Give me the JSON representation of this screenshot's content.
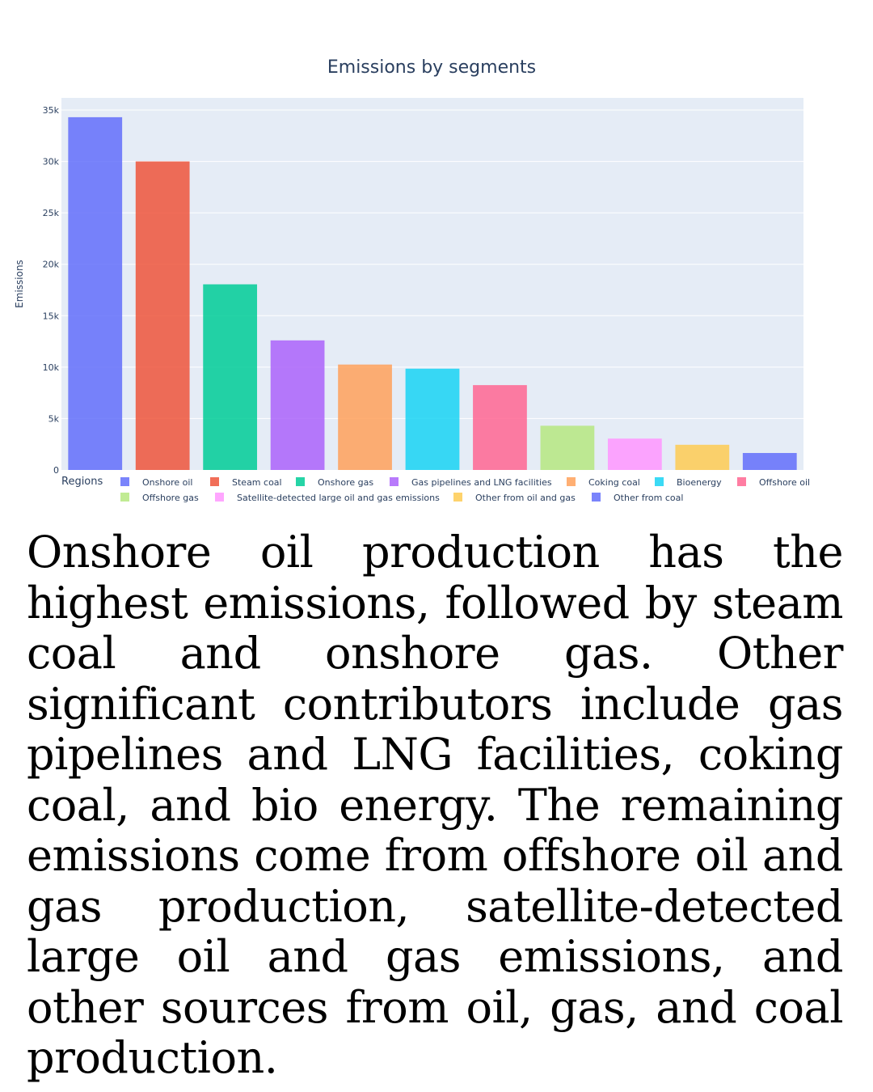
{
  "chart_data": {
    "type": "bar",
    "title": "Emissions by segments",
    "xlabel": "",
    "ylabel": "Emissions",
    "ylim": [
      0,
      35000
    ],
    "yticks": [
      0,
      5000,
      10000,
      15000,
      20000,
      25000,
      30000,
      35000
    ],
    "ytick_labels": [
      "0",
      "5k",
      "10k",
      "15k",
      "20k",
      "25k",
      "30k",
      "35k"
    ],
    "grid": true,
    "legend_title": "Regions",
    "legend_position": "bottom",
    "plot_background": "#e5ecf6",
    "series": [
      {
        "name": "Onshore oil",
        "value": 34300,
        "color": "#636efa"
      },
      {
        "name": "Steam coal",
        "value": 30000,
        "color": "#ef553b"
      },
      {
        "name": "Onshore gas",
        "value": 18050,
        "color": "#00cc96"
      },
      {
        "name": "Gas pipelines and LNG facilities",
        "value": 12600,
        "color": "#ab63fa"
      },
      {
        "name": "Coking coal",
        "value": 10250,
        "color": "#ffa15a"
      },
      {
        "name": "Bioenergy",
        "value": 9850,
        "color": "#19d3f3"
      },
      {
        "name": "Offshore oil",
        "value": 8250,
        "color": "#ff6692"
      },
      {
        "name": "Offshore gas",
        "value": 4300,
        "color": "#b6e880"
      },
      {
        "name": "Satellite-detected large oil and gas emissions",
        "value": 3050,
        "color": "#ff97ff"
      },
      {
        "name": "Other from oil and gas",
        "value": 2450,
        "color": "#fecb52"
      },
      {
        "name": "Other from coal",
        "value": 1650,
        "color": "#636efa"
      }
    ]
  },
  "caption": "Onshore oil production has the highest emissions, followed by steam coal and onshore gas. Other significant contributors include gas pipelines and LNG facilities, coking coal, and bio energy. The remaining emissions come from offshore oil and gas production, satellite-detected large oil and gas emissions, and other sources from oil, gas, and coal production."
}
